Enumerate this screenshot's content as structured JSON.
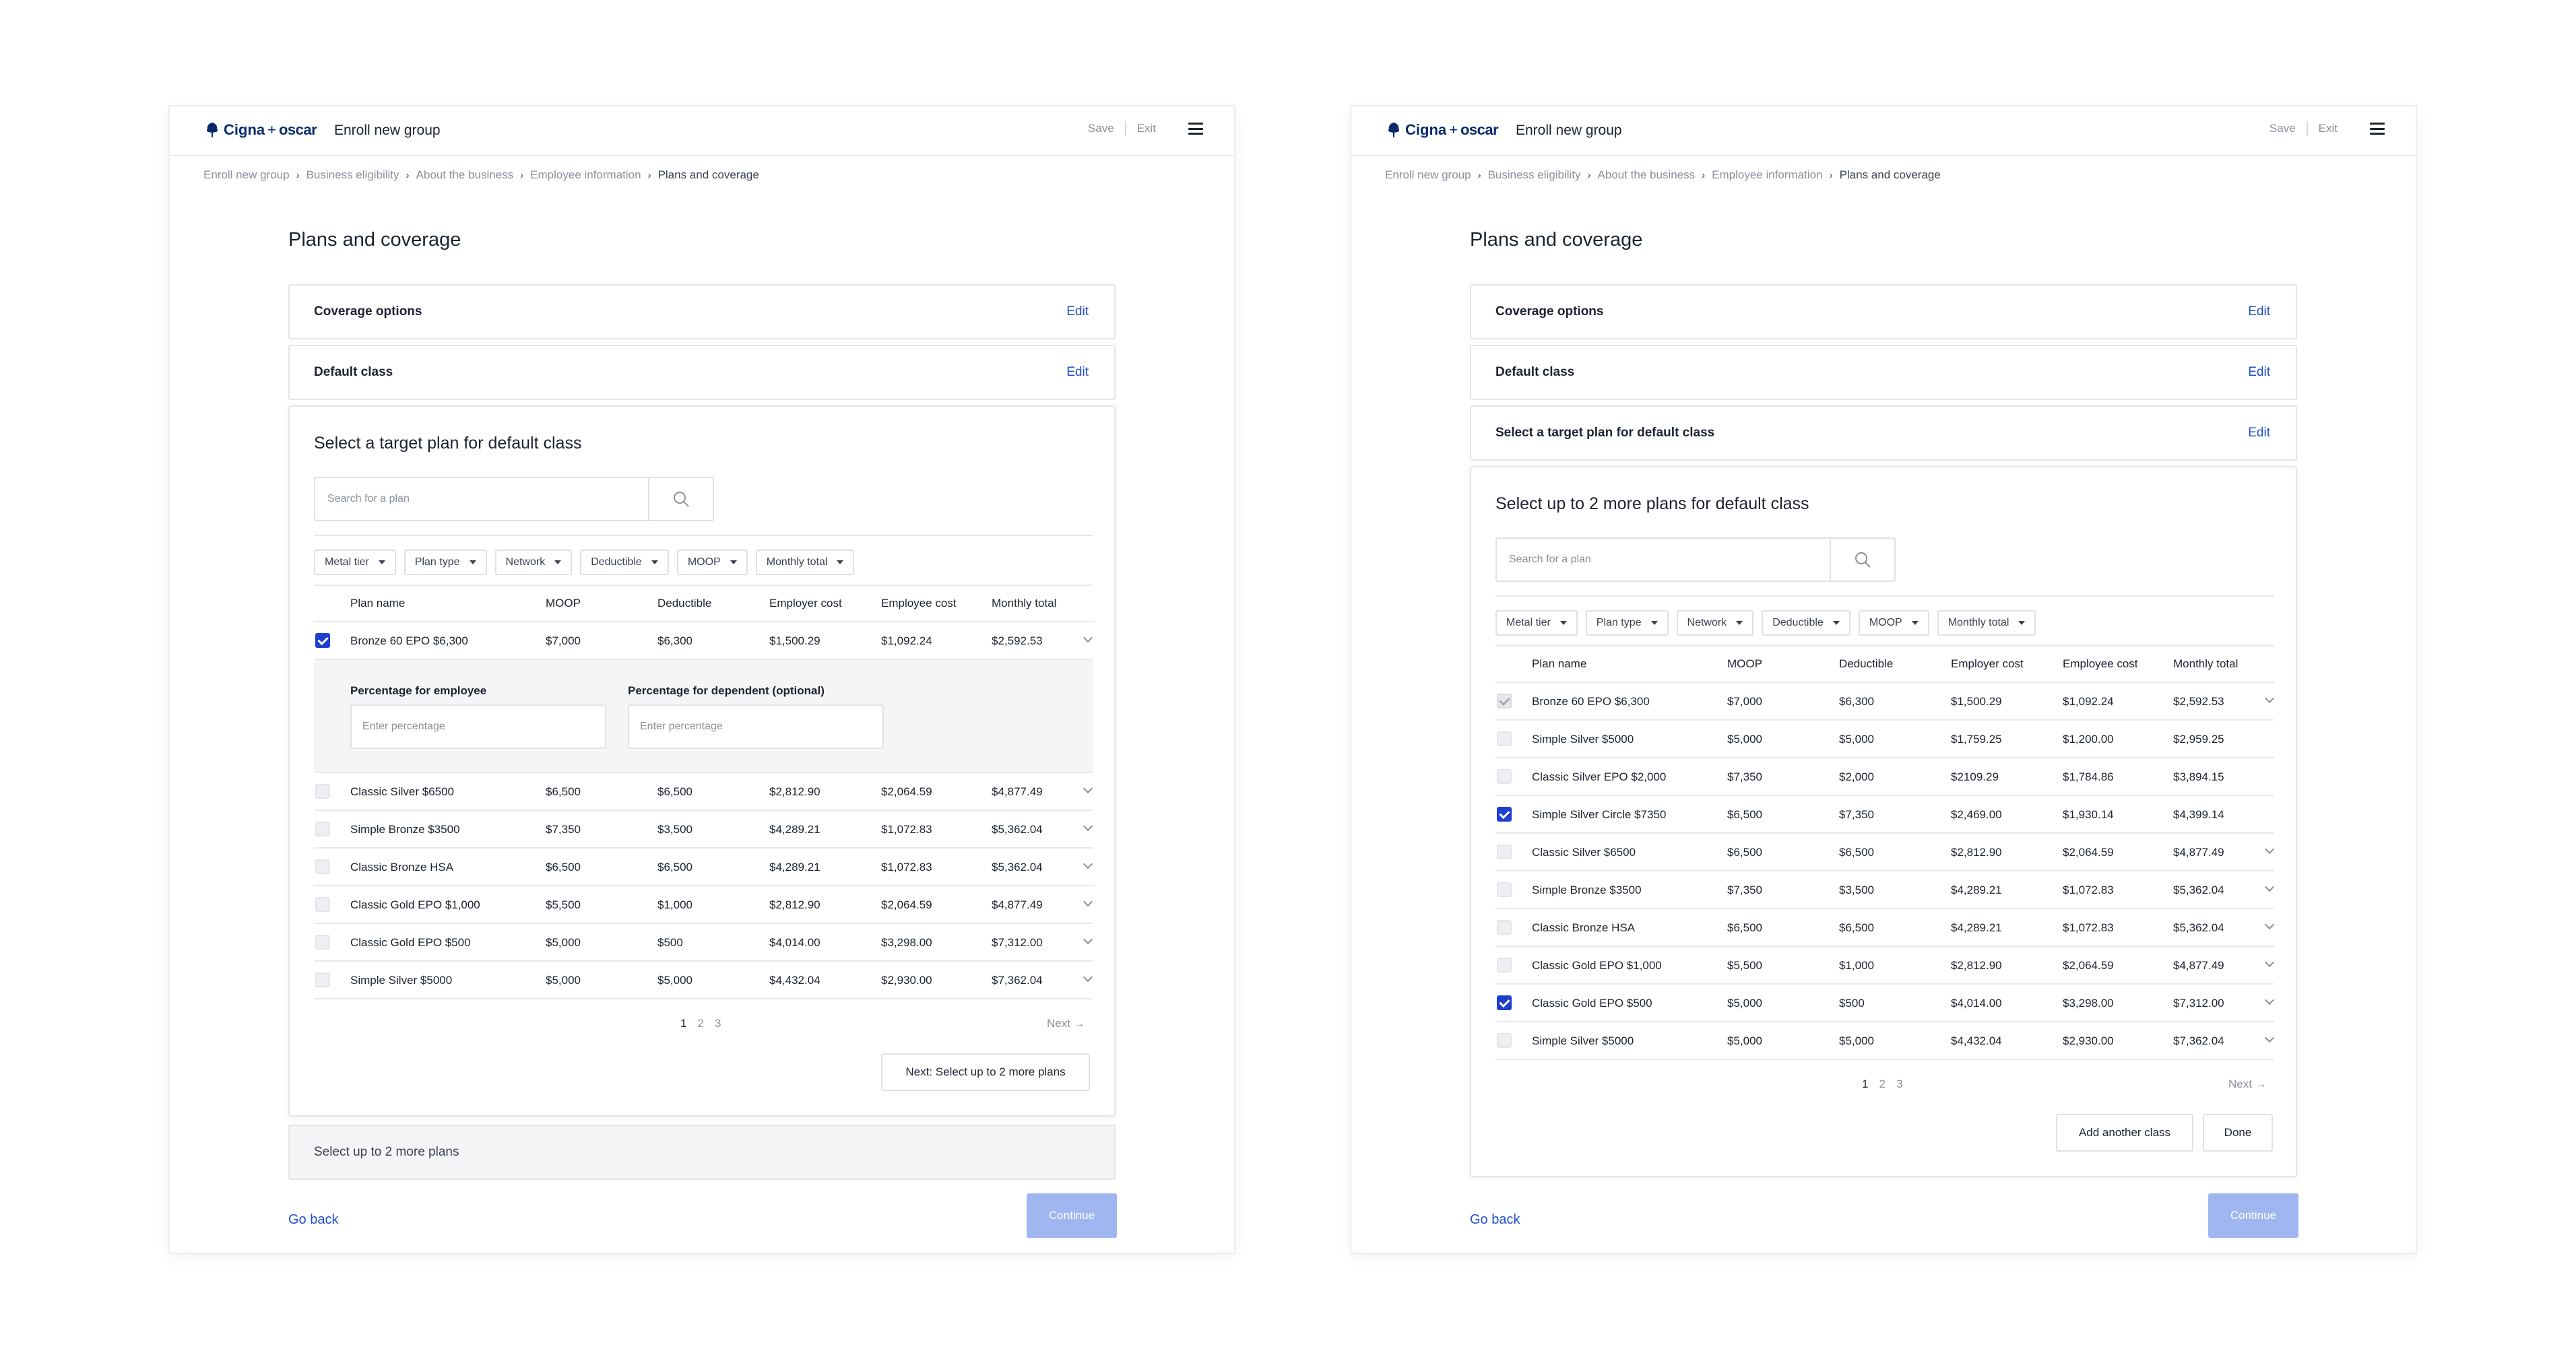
{
  "header": {
    "logo_cigna": "Cigna",
    "logo_plus": "+",
    "logo_oscar": "oscar",
    "app_title": "Enroll new group",
    "save": "Save",
    "exit": "Exit"
  },
  "breadcrumb": [
    "Enroll new group",
    "Business eligibility",
    "About the business",
    "Employee information",
    "Plans and coverage"
  ],
  "page_title": "Plans and coverage",
  "edit_label": "Edit",
  "columns": [
    "Plan name",
    "MOOP",
    "Deductible",
    "Employer cost",
    "Employee cost",
    "Monthly total"
  ],
  "filters": [
    "Metal tier",
    "Plan type",
    "Network",
    "Deductible",
    "MOOP",
    "Monthly total"
  ],
  "pagination": {
    "pages": [
      "1",
      "2",
      "3"
    ],
    "next": "Next →"
  },
  "left": {
    "coverage_options": "Coverage options",
    "default_class": "Default class",
    "section_title": "Select a target plan for default class",
    "search_placeholder": "Search for a plan",
    "selected_row": [
      "Bronze 60 EPO $6,300",
      "$7,000",
      "$6,300",
      "$1,500.29",
      "$1,092.24",
      "$2,592.53"
    ],
    "expand": {
      "employee_label": "Percentage for employee",
      "dependent_label": "Percentage for dependent (optional)",
      "placeholder": "Enter percentage"
    },
    "rows": [
      [
        "Classic Silver $6500",
        "$6,500",
        "$6,500",
        "$2,812.90",
        "$2,064.59",
        "$4,877.49"
      ],
      [
        "Simple Bronze $3500",
        "$7,350",
        "$3,500",
        "$4,289.21",
        "$1,072.83",
        "$5,362.04"
      ],
      [
        "Classic Bronze HSA",
        "$6,500",
        "$6,500",
        "$4,289.21",
        "$1,072.83",
        "$5,362.04"
      ],
      [
        "Classic Gold EPO $1,000",
        "$5,500",
        "$1,000",
        "$2,812.90",
        "$2,064.59",
        "$4,877.49"
      ],
      [
        "Classic Gold EPO $500",
        "$5,000",
        "$500",
        "$4,014.00",
        "$3,298.00",
        "$7,312.00"
      ],
      [
        "Simple Silver $5000",
        "$5,000",
        "$5,000",
        "$4,432.04",
        "$2,930.00",
        "$7,362.04"
      ]
    ],
    "next_step_button": "Next: Select up to 2 more plans",
    "more_plans": "Select up to 2 more plans",
    "go_back": "Go back",
    "continue": "Continue"
  },
  "right": {
    "coverage_options": "Coverage options",
    "default_class": "Default class",
    "target_plan": "Select a target plan for default class",
    "section_title": "Select up to 2 more plans for default class",
    "search_placeholder": "Search for a plan",
    "rows": [
      {
        "cells": [
          "Bronze 60 EPO $6,300",
          "$7,000",
          "$6,300",
          "$1,500.29",
          "$1,092.24",
          "$2,592.53"
        ],
        "state": "locked",
        "chevron": true
      },
      {
        "cells": [
          "Simple Silver $5000",
          "$5,000",
          "$5,000",
          "$1,759.25",
          "$1,200.00",
          "$2,959.25"
        ],
        "state": "off",
        "chevron": false
      },
      {
        "cells": [
          "Classic Silver EPO $2,000",
          "$7,350",
          "$2,000",
          "$2109.29",
          "$1,784.86",
          "$3,894.15"
        ],
        "state": "off",
        "chevron": false
      },
      {
        "cells": [
          "Simple Silver Circle $7350",
          "$6,500",
          "$7,350",
          "$2,469.00",
          "$1,930.14",
          "$4,399.14"
        ],
        "state": "on",
        "chevron": false
      },
      {
        "cells": [
          "Classic Silver $6500",
          "$6,500",
          "$6,500",
          "$2,812.90",
          "$2,064.59",
          "$4,877.49"
        ],
        "state": "off",
        "chevron": true
      },
      {
        "cells": [
          "Simple Bronze $3500",
          "$7,350",
          "$3,500",
          "$4,289.21",
          "$1,072.83",
          "$5,362.04"
        ],
        "state": "off",
        "chevron": true
      },
      {
        "cells": [
          "Classic Bronze HSA",
          "$6,500",
          "$6,500",
          "$4,289.21",
          "$1,072.83",
          "$5,362.04"
        ],
        "state": "off",
        "chevron": true
      },
      {
        "cells": [
          "Classic Gold EPO $1,000",
          "$5,500",
          "$1,000",
          "$2,812.90",
          "$2,064.59",
          "$4,877.49"
        ],
        "state": "off",
        "chevron": true
      },
      {
        "cells": [
          "Classic Gold EPO $500",
          "$5,000",
          "$500",
          "$4,014.00",
          "$3,298.00",
          "$7,312.00"
        ],
        "state": "on",
        "chevron": true
      },
      {
        "cells": [
          "Simple Silver $5000",
          "$5,000",
          "$5,000",
          "$4,432.04",
          "$2,930.00",
          "$7,362.04"
        ],
        "state": "off",
        "chevron": true
      }
    ],
    "add_class_button": "Add another class",
    "done_button": "Done",
    "go_back": "Go back",
    "continue": "Continue"
  },
  "colors": {
    "accent": "#1f3fd0",
    "link": "#1f4fd0",
    "continue_disabled": "#9fb6f0"
  },
  "icons": [
    "tree-logo-icon",
    "hamburger-menu-icon",
    "chevron-right-icon",
    "search-icon",
    "caret-down-icon",
    "checkbox-checked-icon",
    "chevron-down-icon"
  ]
}
